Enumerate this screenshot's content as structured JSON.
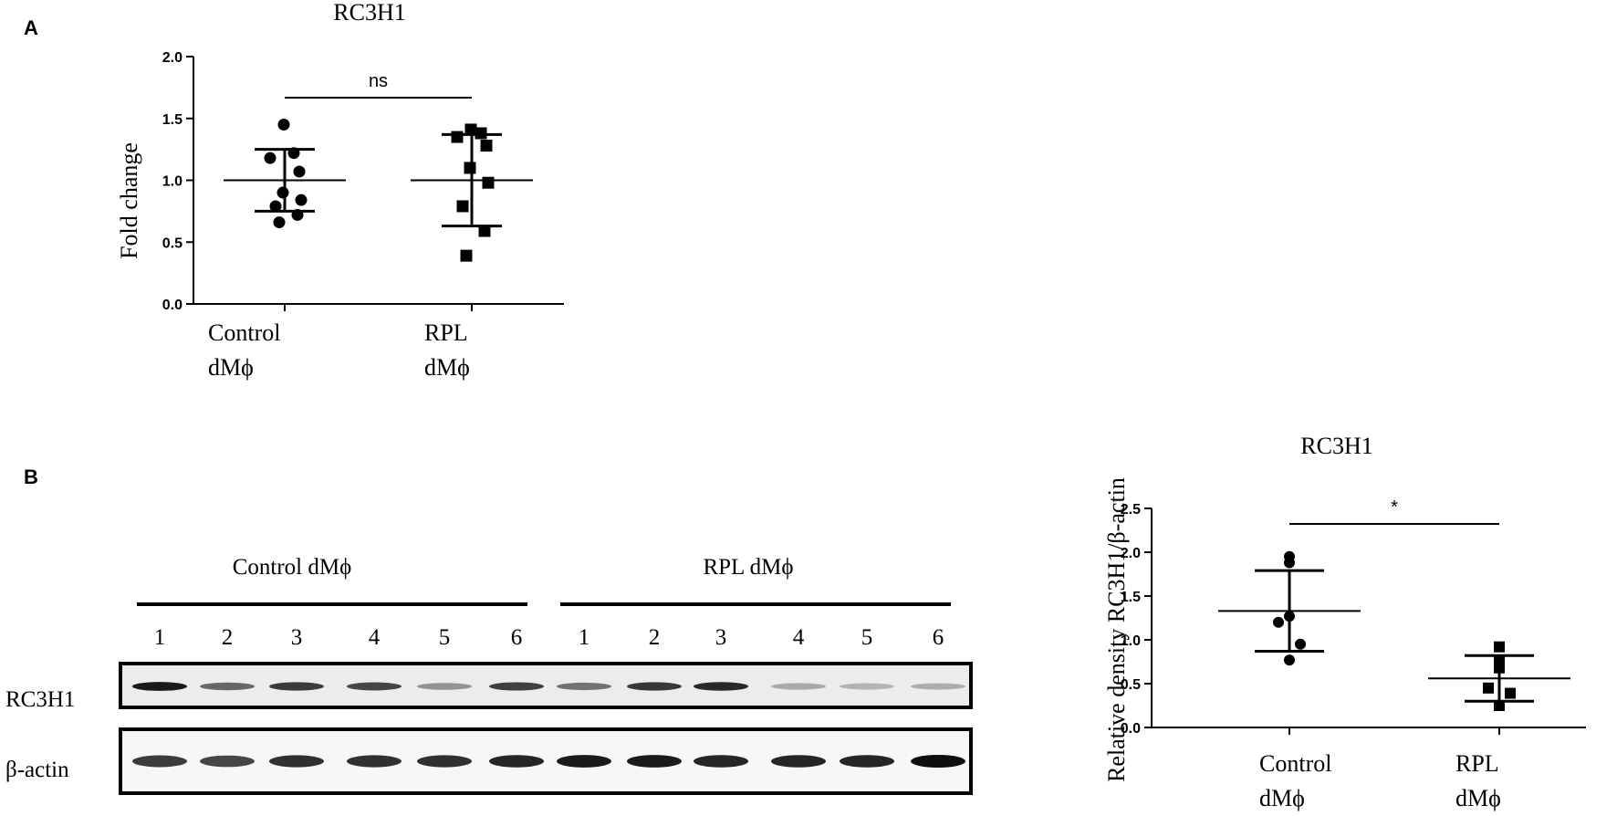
{
  "panels": {
    "a": "A",
    "b": "B"
  },
  "chart_data": [
    {
      "type": "scatter",
      "title": "RC3H1",
      "ylabel": "Fold change",
      "ylim": [
        0,
        2.0
      ],
      "yticks": [
        "0.0",
        "0.5",
        "1.0",
        "1.5",
        "2.0"
      ],
      "categories": [
        [
          "Control",
          "dMϕ"
        ],
        [
          "RPL",
          "dMϕ"
        ]
      ],
      "markers": [
        "circle",
        "square"
      ],
      "series": [
        {
          "values": [
            1.45,
            1.22,
            1.18,
            1.07,
            0.9,
            0.84,
            0.79,
            0.72,
            0.66
          ],
          "mean": 1.0,
          "sd": 0.25
        },
        {
          "values": [
            1.41,
            1.38,
            1.35,
            1.28,
            1.1,
            0.98,
            0.79,
            0.59,
            0.39
          ],
          "mean": 1.0,
          "sd": 0.37
        }
      ],
      "significance": "ns"
    },
    {
      "type": "scatter",
      "title": "RC3H1",
      "ylabel": "Relative density RC3H1/β-actin",
      "ylim": [
        0,
        2.5
      ],
      "yticks": [
        "0.0",
        "0.5",
        "1.0",
        "1.5",
        "2.0",
        "2.5"
      ],
      "categories": [
        [
          "Control",
          "dMϕ"
        ],
        [
          "RPL",
          "dMϕ"
        ]
      ],
      "markers": [
        "circle",
        "square"
      ],
      "series": [
        {
          "values": [
            1.95,
            1.88,
            1.27,
            1.2,
            0.95,
            0.77
          ],
          "mean": 1.33,
          "sd": 0.46
        },
        {
          "values": [
            0.92,
            0.75,
            0.68,
            0.45,
            0.39,
            0.25
          ],
          "mean": 0.56,
          "sd": 0.26
        }
      ],
      "significance": "*"
    }
  ],
  "blot": {
    "group_labels": [
      "Control dMϕ",
      "RPL dMϕ"
    ],
    "lanes": [
      "1",
      "2",
      "3",
      "4",
      "5",
      "6",
      "1",
      "2",
      "3",
      "4",
      "5",
      "6"
    ],
    "rows": [
      {
        "label": "RC3H1",
        "intensity": [
          0.95,
          0.6,
          0.8,
          0.75,
          0.4,
          0.78,
          0.55,
          0.82,
          0.88,
          0.3,
          0.25,
          0.28
        ]
      },
      {
        "label": "β-actin",
        "intensity": [
          0.8,
          0.75,
          0.85,
          0.85,
          0.85,
          0.9,
          0.95,
          0.95,
          0.9,
          0.9,
          0.9,
          1.0
        ]
      }
    ]
  }
}
